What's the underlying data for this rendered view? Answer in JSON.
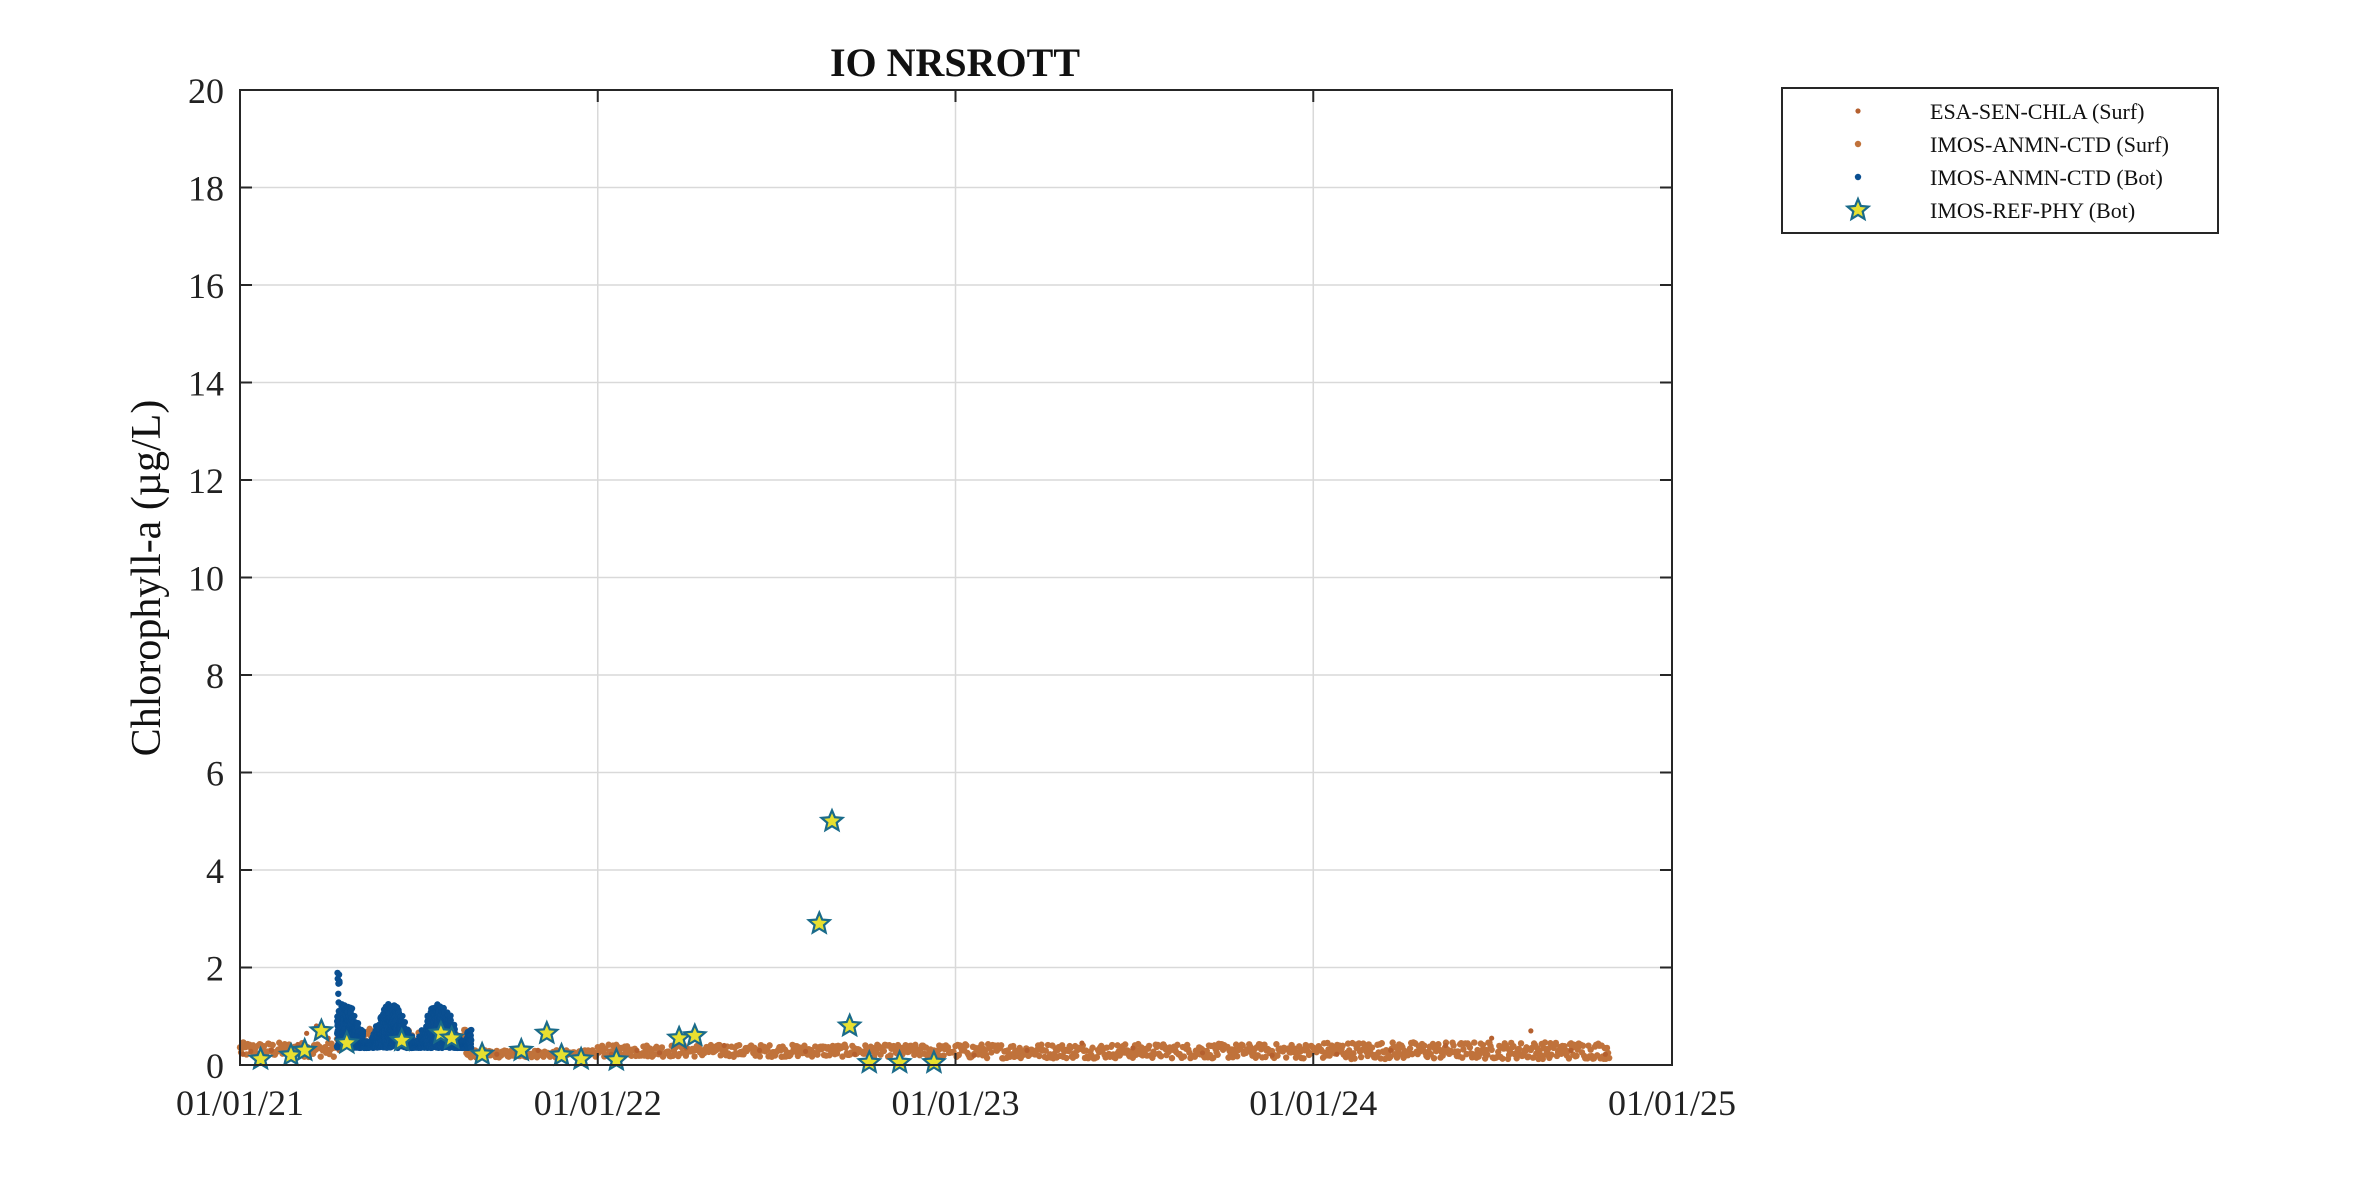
{
  "chart_data": {
    "type": "scatter",
    "title": "IO NRSROTT",
    "xlabel": "",
    "ylabel": "Chlorophyll-a (µg/L)",
    "x_axis": "date",
    "xlim": [
      "2021-01-01",
      "2025-01-01"
    ],
    "ylim": [
      0,
      20
    ],
    "x_ticks": [
      "2021-01-01",
      "2022-01-01",
      "2023-01-01",
      "2024-01-01",
      "2025-01-01"
    ],
    "x_tick_labels": [
      "01/01/21",
      "01/01/22",
      "01/01/23",
      "01/01/24",
      "01/01/25"
    ],
    "y_ticks": [
      0,
      2,
      4,
      6,
      8,
      10,
      12,
      14,
      16,
      18,
      20
    ],
    "y_tick_labels": [
      "0",
      "2",
      "4",
      "6",
      "8",
      "10",
      "12",
      "14",
      "16",
      "18",
      "20"
    ],
    "grid": true,
    "legend_position": "outside-top-right",
    "series": [
      {
        "name": "ESA-SEN-CHLA (Surf)",
        "marker": "dot-small",
        "color": "#b5602f",
        "points": [
          [
            "2021-01-04",
            0.22
          ],
          [
            "2021-01-12",
            0.28
          ],
          [
            "2021-01-20",
            0.2
          ],
          [
            "2021-02-02",
            0.3
          ],
          [
            "2021-02-15",
            0.25
          ],
          [
            "2021-03-01",
            0.42
          ],
          [
            "2021-03-10",
            0.65
          ],
          [
            "2021-03-20",
            0.8
          ],
          [
            "2021-04-01",
            0.55
          ],
          [
            "2021-04-12",
            0.3
          ],
          [
            "2021-08-25",
            0.45
          ],
          [
            "2021-09-05",
            0.3
          ],
          [
            "2021-09-20",
            0.22
          ],
          [
            "2021-10-10",
            0.25
          ],
          [
            "2021-11-01",
            0.3
          ],
          [
            "2021-12-01",
            0.2
          ],
          [
            "2022-01-15",
            0.22
          ],
          [
            "2022-02-10",
            0.3
          ],
          [
            "2022-03-05",
            0.25
          ],
          [
            "2022-04-01",
            0.35
          ],
          [
            "2022-05-10",
            0.4
          ],
          [
            "2022-06-15",
            0.3
          ],
          [
            "2022-08-01",
            0.28
          ],
          [
            "2022-09-20",
            0.22
          ],
          [
            "2022-11-05",
            0.18
          ],
          [
            "2023-01-20",
            0.2
          ],
          [
            "2023-03-15",
            0.3
          ],
          [
            "2023-05-10",
            0.45
          ],
          [
            "2023-07-01",
            0.35
          ],
          [
            "2023-09-10",
            0.25
          ],
          [
            "2023-11-20",
            0.2
          ],
          [
            "2024-01-25",
            0.22
          ],
          [
            "2024-03-20",
            0.3
          ],
          [
            "2024-05-15",
            0.4
          ],
          [
            "2024-07-01",
            0.55
          ],
          [
            "2024-08-10",
            0.7
          ],
          [
            "2024-09-20",
            0.3
          ],
          [
            "2024-10-25",
            0.22
          ]
        ]
      },
      {
        "name": "IMOS-ANMN-CTD (Surf)",
        "marker": "dot",
        "color": "#c0723b",
        "segments": [
          {
            "start": "2021-01-01",
            "end": "2021-04-10",
            "base": 0.3,
            "amp": 0.3
          },
          {
            "start": "2021-04-10",
            "end": "2021-08-20",
            "base": 0.55,
            "amp": 0.35
          },
          {
            "start": "2021-08-20",
            "end": "2021-12-31",
            "base": 0.22,
            "amp": 0.15
          },
          {
            "start": "2022-01-01",
            "end": "2022-12-31",
            "base": 0.28,
            "amp": 0.25
          },
          {
            "start": "2023-01-01",
            "end": "2023-12-31",
            "base": 0.27,
            "amp": 0.3
          },
          {
            "start": "2024-01-01",
            "end": "2024-10-30",
            "base": 0.28,
            "amp": 0.35
          }
        ]
      },
      {
        "name": "IMOS-ANMN-CTD (Bot)",
        "marker": "dot",
        "color": "#0a4f91",
        "segments": [
          {
            "start": "2021-04-10",
            "end": "2021-08-25",
            "base": 0.7,
            "amp": 0.9,
            "peak": 2.1
          }
        ]
      },
      {
        "name": "IMOS-REF-PHY (Bot)",
        "marker": "star",
        "color": "#1a6b8a",
        "fill": "#e8e030",
        "points": [
          [
            "2021-01-22",
            0.12
          ],
          [
            "2021-02-22",
            0.2
          ],
          [
            "2021-03-08",
            0.3
          ],
          [
            "2021-03-25",
            0.7
          ],
          [
            "2021-04-20",
            0.45
          ],
          [
            "2021-06-15",
            0.5
          ],
          [
            "2021-07-25",
            0.65
          ],
          [
            "2021-08-05",
            0.55
          ],
          [
            "2021-09-05",
            0.22
          ],
          [
            "2021-10-15",
            0.3
          ],
          [
            "2021-11-10",
            0.65
          ],
          [
            "2021-11-25",
            0.2
          ],
          [
            "2021-12-15",
            0.12
          ],
          [
            "2022-01-20",
            0.1
          ],
          [
            "2022-03-25",
            0.55
          ],
          [
            "2022-04-10",
            0.6
          ],
          [
            "2022-08-15",
            2.9
          ],
          [
            "2022-08-28",
            5.0
          ],
          [
            "2022-09-15",
            0.8
          ],
          [
            "2022-10-05",
            0.05
          ],
          [
            "2022-11-05",
            0.05
          ],
          [
            "2022-12-10",
            0.05
          ]
        ]
      }
    ]
  }
}
